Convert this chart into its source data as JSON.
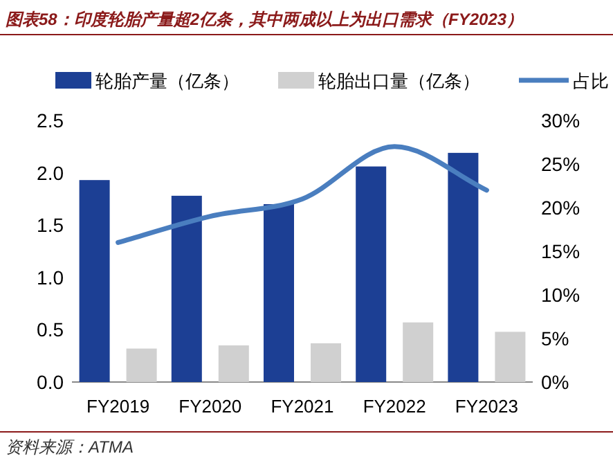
{
  "chart_data": {
    "type": "bar",
    "title": "图表58：印度轮胎产量超2亿条，其中两成以上为出口需求（FY2023）",
    "categories": [
      "FY2019",
      "FY2020",
      "FY2021",
      "FY2022",
      "FY2023"
    ],
    "series": [
      {
        "name": "轮胎产量（亿条）",
        "color": "#1c3f94",
        "values": [
          1.93,
          1.78,
          1.7,
          2.06,
          2.19
        ]
      },
      {
        "name": "轮胎出口量（亿条）",
        "color": "#d0d0d0",
        "values": [
          0.32,
          0.35,
          0.37,
          0.57,
          0.48
        ]
      },
      {
        "name": "占比",
        "type": "line",
        "axis": "y2",
        "color": "#4a7ebf",
        "values": [
          16,
          19,
          21,
          27,
          22
        ]
      }
    ],
    "ylim": [
      0,
      2.5
    ],
    "yticks": [
      {
        "value": 0,
        "label": "0.0"
      },
      {
        "value": 0.5,
        "label": "0.5"
      },
      {
        "value": 1,
        "label": "1.0"
      },
      {
        "value": 1.5,
        "label": "1.5"
      },
      {
        "value": 2,
        "label": "2.0"
      },
      {
        "value": 2.5,
        "label": "2.5"
      }
    ],
    "y2lim": [
      0,
      30
    ],
    "y2ticks": [
      {
        "value": 0,
        "label": "0%"
      },
      {
        "value": 5,
        "label": "5%"
      },
      {
        "value": 10,
        "label": "10%"
      },
      {
        "value": 15,
        "label": "15%"
      },
      {
        "value": 20,
        "label": "20%"
      },
      {
        "value": 25,
        "label": "25%"
      },
      {
        "value": 30,
        "label": "30%"
      }
    ],
    "legend": "top",
    "grid": false,
    "annotations": [
      "资料来源：ATMA"
    ]
  }
}
